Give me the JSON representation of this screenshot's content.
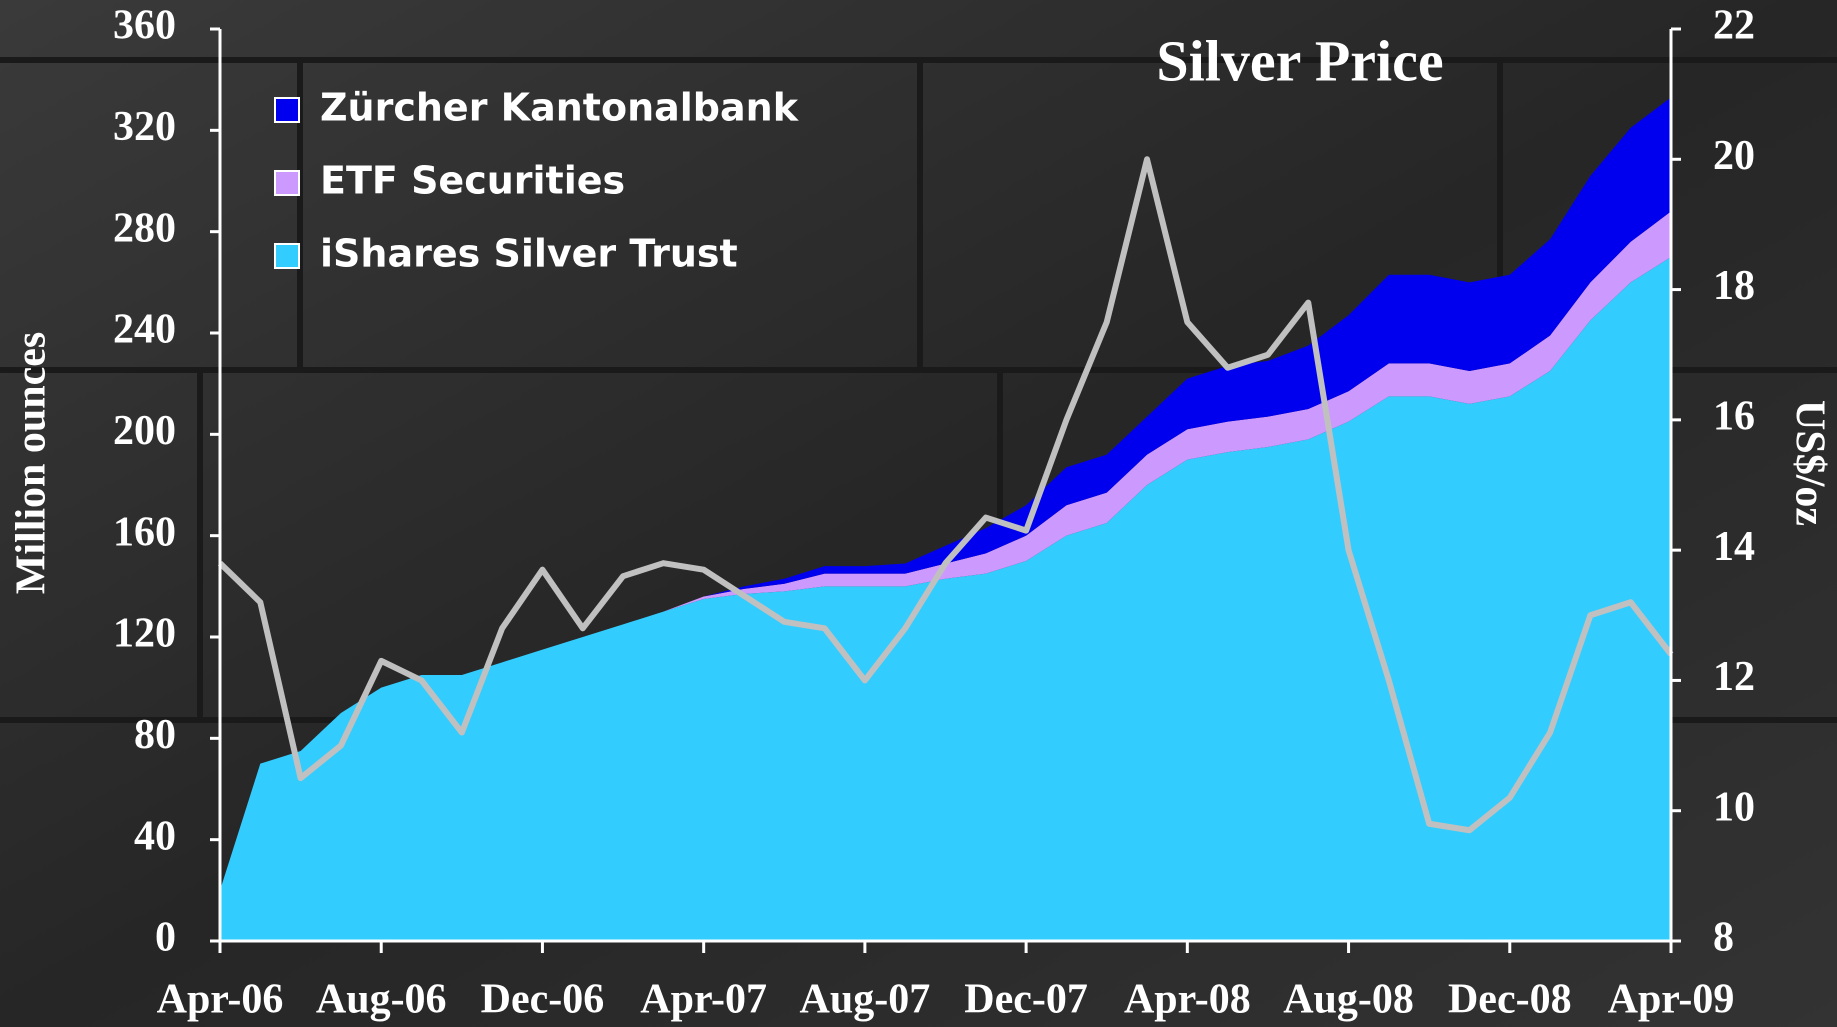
{
  "chart_data": {
    "type": "stacked_area",
    "y_label": "Million ounces",
    "y2_label": "US$/oz",
    "categories": [
      "Apr-06",
      null,
      null,
      null,
      "Aug-06",
      null,
      null,
      null,
      "Dec-06",
      null,
      null,
      null,
      "Apr-07",
      null,
      null,
      null,
      "Aug-07",
      null,
      null,
      null,
      "Dec-07",
      null,
      null,
      null,
      "Apr-08",
      null,
      null,
      null,
      "Aug-08",
      null,
      null,
      null,
      "Dec-08",
      null,
      null,
      null,
      "Apr-09"
    ],
    "ylim": [
      0,
      360
    ],
    "yticks": [
      0,
      40,
      80,
      120,
      160,
      200,
      240,
      280,
      320,
      360
    ],
    "y2lim": [
      8,
      22
    ],
    "y2ticks": [
      8,
      10,
      12,
      14,
      16,
      18,
      20,
      22
    ],
    "legend": "top-left",
    "series": [
      {
        "name": "iShares Silver Trust",
        "color": "#33ccff",
        "values": [
          20,
          70,
          75,
          90,
          100,
          105,
          105,
          110,
          115,
          120,
          125,
          130,
          135,
          137,
          138,
          140,
          140,
          140,
          143,
          145,
          150,
          160,
          165,
          180,
          190,
          193,
          195,
          198,
          205,
          215,
          215,
          212,
          215,
          225,
          245,
          260,
          270
        ]
      },
      {
        "name": "ETF Securities",
        "color": "#cc99ff",
        "values": [
          0,
          0,
          0,
          0,
          0,
          0,
          0,
          0,
          0,
          0,
          0,
          0,
          1,
          2,
          3,
          5,
          5,
          5,
          6,
          8,
          10,
          12,
          12,
          12,
          12,
          12,
          12,
          12,
          12,
          13,
          13,
          13,
          13,
          14,
          15,
          16,
          18
        ]
      },
      {
        "name": "Zürcher Kantonalbank",
        "color": "#0000ee",
        "values": [
          0,
          0,
          0,
          0,
          0,
          0,
          0,
          0,
          0,
          0,
          0,
          0,
          0,
          1,
          2,
          3,
          3,
          4,
          7,
          10,
          12,
          15,
          15,
          15,
          20,
          22,
          22,
          25,
          30,
          35,
          35,
          35,
          35,
          38,
          42,
          45,
          45
        ]
      },
      {
        "name": "Silver Price",
        "type": "line",
        "axis": "y2",
        "color": "#c0c0c0",
        "values": [
          13.8,
          13.2,
          10.5,
          11.0,
          12.3,
          12.0,
          11.2,
          12.8,
          13.7,
          12.8,
          13.6,
          13.8,
          13.7,
          13.3,
          12.9,
          12.8,
          12.0,
          12.8,
          13.8,
          14.5,
          14.3,
          16.0,
          17.5,
          20.0,
          17.5,
          16.8,
          17.0,
          17.8,
          14.0,
          12.0,
          9.8,
          9.7,
          10.2,
          11.2,
          13.0,
          13.2,
          12.4
        ]
      }
    ]
  }
}
